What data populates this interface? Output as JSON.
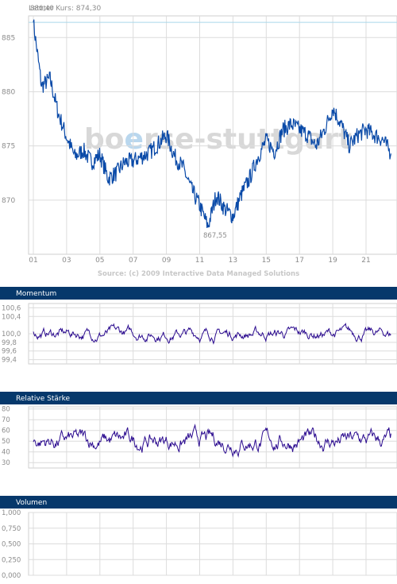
{
  "header": {
    "last_price": "Letzter Kurs: 874,30"
  },
  "watermark": {
    "part1": "bo",
    "part2": "e",
    "part3": "rse-stuttgart"
  },
  "source": "Source: (c) 2009 Interactive Data Managed Solutions",
  "colors": {
    "line": "#0a4aa8",
    "indicator": "#2b0b8f",
    "header_bar": "#06386b",
    "ref_line": "#a9d7ea"
  },
  "chart_data": [
    {
      "type": "line",
      "name": "price",
      "title": "",
      "x_ticks": [
        "01",
        "03",
        "05",
        "07",
        "09",
        "11",
        "13",
        "15",
        "17",
        "19",
        "21"
      ],
      "y_ticks": [
        "885",
        "880",
        "875",
        "870"
      ],
      "ylim": [
        865,
        887
      ],
      "high_label": "886,40",
      "low_label": "867,55",
      "high_value": 886.4,
      "low_value": 867.55,
      "last_value": 874.3,
      "x": [
        1,
        1.5,
        2,
        2.5,
        3,
        3.5,
        4,
        4.5,
        5,
        5.5,
        6,
        6.5,
        7,
        7.5,
        8,
        8.5,
        9,
        9.5,
        10,
        10.5,
        11,
        11.5,
        12,
        12.5,
        13,
        13.5,
        14,
        14.5,
        15,
        15.5,
        16,
        16.5,
        17,
        17.5,
        18,
        18.5,
        19,
        19.5,
        20,
        20.5,
        21,
        21.5,
        22,
        22.5
      ],
      "values": [
        886.4,
        880.5,
        881.2,
        878.0,
        875.8,
        874.0,
        874.6,
        873.5,
        874.2,
        872.0,
        872.5,
        873.5,
        873.6,
        874.0,
        874.4,
        875.2,
        876.0,
        874.0,
        873.0,
        871.0,
        869.5,
        867.55,
        870.5,
        869.2,
        868.5,
        870.5,
        872.0,
        874.0,
        875.5,
        874.5,
        876.5,
        877.0,
        876.5,
        876.0,
        875.0,
        876.5,
        878.5,
        877.0,
        875.0,
        876.0,
        876.5,
        876.0,
        875.6,
        874.3
      ]
    },
    {
      "type": "line",
      "name": "Momentum",
      "title": "Momentum",
      "y_ticks": [
        "100,6",
        "100,4",
        "100,0",
        "99,8",
        "99,6",
        "99,4"
      ],
      "ylim": [
        99.3,
        100.7
      ],
      "baseline": 100.0
    },
    {
      "type": "line",
      "name": "Relative Stärke",
      "title": "Relative Stärke",
      "y_ticks": [
        "80",
        "70",
        "60",
        "50",
        "40",
        "30"
      ],
      "ylim": [
        25,
        82
      ]
    },
    {
      "type": "bar",
      "name": "Volumen",
      "title": "Volumen",
      "y_ticks": [
        "1,000",
        "0,750",
        "0,500",
        "0,250",
        "0,000"
      ],
      "ylim": [
        0,
        1
      ]
    }
  ]
}
